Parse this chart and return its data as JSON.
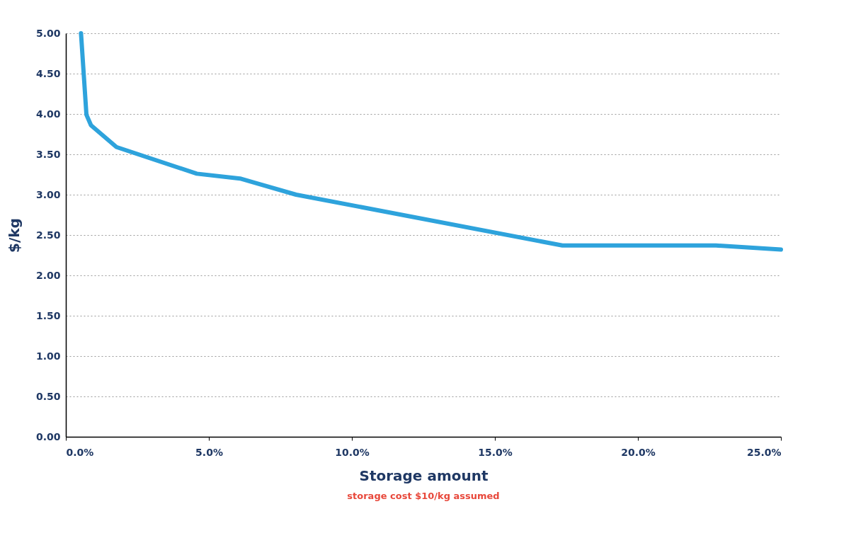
{
  "chart_data": {
    "type": "line",
    "xlabel": "Storage amount",
    "ylabel": "$/kg",
    "x": [
      0.53,
      0.72,
      0.88,
      1.77,
      4.58,
      6.09,
      8.05,
      17.36,
      22.73,
      25.0
    ],
    "series": [
      {
        "color": "#2ea3dc",
        "values": [
          5.0,
          3.99,
          3.86,
          3.59,
          3.26,
          3.2,
          3.0,
          2.37,
          2.37,
          2.32
        ]
      }
    ],
    "xlim": [
      0,
      25
    ],
    "xticks": [
      {
        "value": 0,
        "label": "0.0%"
      },
      {
        "value": 5,
        "label": "5.0%"
      },
      {
        "value": 10,
        "label": "10.0%"
      },
      {
        "value": 15,
        "label": "15.0%"
      },
      {
        "value": 20,
        "label": "20.0%"
      },
      {
        "value": 25,
        "label": "25.0%"
      }
    ],
    "ylim": [
      0,
      5
    ],
    "yticks": [
      {
        "value": 0,
        "label": "0.00"
      },
      {
        "value": 0.5,
        "label": "0.50"
      },
      {
        "value": 1,
        "label": "1.00"
      },
      {
        "value": 1.5,
        "label": "1.50"
      },
      {
        "value": 2,
        "label": "2.00"
      },
      {
        "value": 2.5,
        "label": "2.50"
      },
      {
        "value": 3,
        "label": "3.00"
      },
      {
        "value": 3.5,
        "label": "3.50"
      },
      {
        "value": 4,
        "label": "4.00"
      },
      {
        "value": 4.5,
        "label": "4.50"
      },
      {
        "value": 5,
        "label": "5.00"
      }
    ],
    "grid": "y",
    "marker": "none",
    "line_style": "solid",
    "annotations": [
      "storage cost $10/kg assumed"
    ]
  }
}
